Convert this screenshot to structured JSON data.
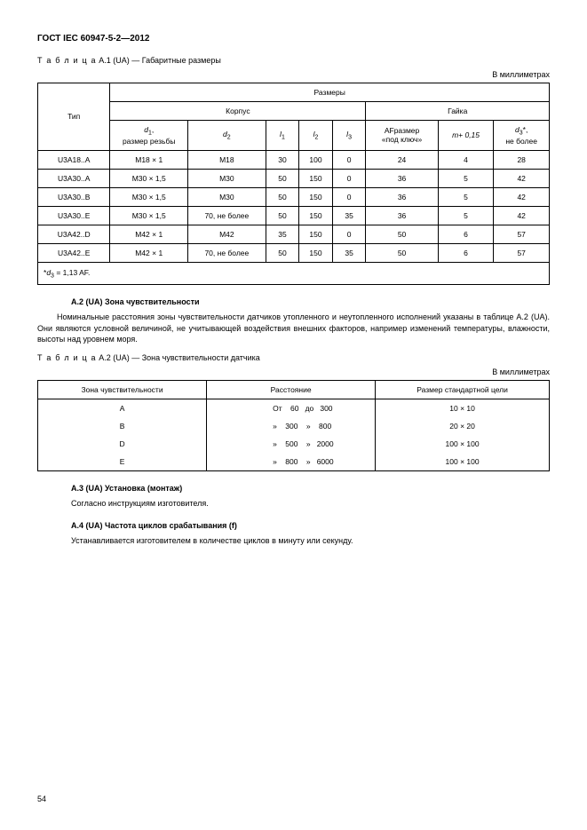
{
  "docHeader": "ГОСТ IEC 60947-5-2—2012",
  "tableA1": {
    "captionPrefix": "Т а б л и ц а",
    "captionRest": "  А.1 (UA) — Габаритные размеры",
    "unit": "В миллиметрах",
    "head": {
      "tip": "Тип",
      "sizes": "Размеры",
      "body": "Корпус",
      "nut": "Гайка",
      "d1a": "d",
      "d1b": "1",
      "d1c": ",",
      "d1line2": "размер резьбы",
      "d2a": "d",
      "d2b": "2",
      "l1a": "l",
      "l1b": "1",
      "l2a": "l",
      "l2b": "2",
      "l3a": "l",
      "l3b": "3",
      "af1": "AFразмер",
      "af2": "«под ключ»",
      "m": "m+ 0,15",
      "d3a": "d",
      "d3b": "3",
      "d3c": "*,",
      "d3line2": "не более"
    },
    "rows": [
      {
        "tip": "U3A18..A",
        "d1": "M18 × 1",
        "d2": "M18",
        "l1": "30",
        "l2": "100",
        "l3": "0",
        "af": "24",
        "m": "4",
        "d3": "28"
      },
      {
        "tip": "U3A30..A",
        "d1": "M30 × 1,5",
        "d2": "M30",
        "l1": "50",
        "l2": "150",
        "l3": "0",
        "af": "36",
        "m": "5",
        "d3": "42"
      },
      {
        "tip": "U3A30..B",
        "d1": "M30 × 1,5",
        "d2": "M30",
        "l1": "50",
        "l2": "150",
        "l3": "0",
        "af": "36",
        "m": "5",
        "d3": "42"
      },
      {
        "tip": "U3A30..E",
        "d1": "M30 × 1,5",
        "d2": "70, не более",
        "l1": "50",
        "l2": "150",
        "l3": "35",
        "af": "36",
        "m": "5",
        "d3": "42"
      },
      {
        "tip": "U3A42..D",
        "d1": "M42 × 1",
        "d2": "M42",
        "l1": "35",
        "l2": "150",
        "l3": "0",
        "af": "50",
        "m": "6",
        "d3": "57"
      },
      {
        "tip": "U3A42..E",
        "d1": "M42 × 1",
        "d2": "70, не более",
        "l1": "50",
        "l2": "150",
        "l3": "35",
        "af": "50",
        "m": "6",
        "d3": "57"
      }
    ],
    "footnotePre": "*",
    "footnoteD": "d",
    "footnoteSub": "3",
    "footnoteRest": " = 1,13 AF."
  },
  "secA2": {
    "title": "А.2 (UA) Зона чувствительности",
    "para": "Номинальные расстояния зоны чувствительности датчиков утопленного и неутопленного исполнений указаны в таблице А.2 (UA). Они являются условной величиной, не учитывающей воздействия внешних факторов, например изменений температуры, влажности, высоты над уровнем моря."
  },
  "tableA2": {
    "captionPrefix": "Т а б л и ц а",
    "captionRest": "  А.2 (UA) — Зона чувствительности датчика",
    "unit": "В миллиметрах",
    "head": {
      "c1": "Зона чувствительности",
      "c2": "Расстояние",
      "c3": "Размер стандартной цели"
    },
    "rows": [
      {
        "z": "A",
        "d": "От    60   до   300",
        "t": "10 × 10"
      },
      {
        "z": "B",
        "d": "»    300    »    800",
        "t": "20 × 20"
      },
      {
        "z": "D",
        "d": "»    500    »   2000",
        "t": "100 × 100"
      },
      {
        "z": "E",
        "d": "»    800    »   6000",
        "t": "100 × 100"
      }
    ]
  },
  "secA3": {
    "title": "А.3 (UA) Установка (монтаж)",
    "para": "Согласно инструкциям изготовителя."
  },
  "secA4": {
    "title": "А.4 (UA) Частота циклов срабатывания (f)",
    "para": "Устанавливается изготовителем в количестве циклов в минуту или секунду."
  },
  "pageNumber": "54"
}
